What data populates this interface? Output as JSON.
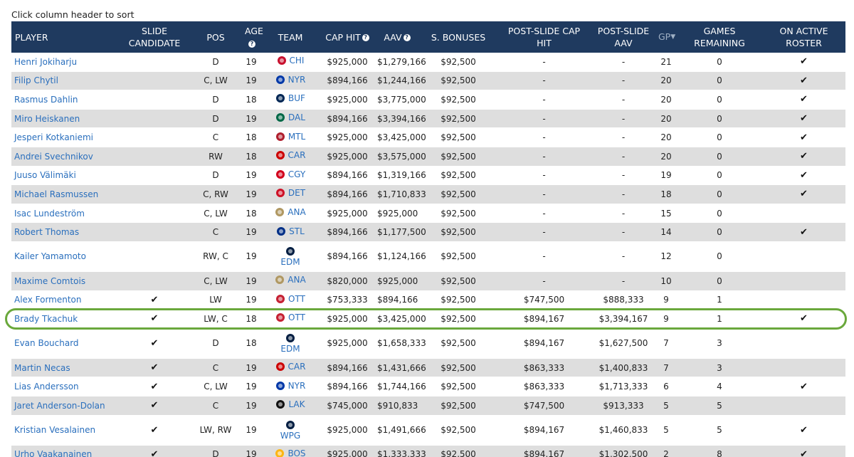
{
  "hint": "Click column header to sort",
  "columns": {
    "player": "PLAYER",
    "slide_candidate": "SLIDE CANDIDATE",
    "pos": "POS",
    "age": "AGE",
    "team": "TEAM",
    "cap_hit": "CAP HIT",
    "aav": "AAV",
    "s_bonuses": "S. BONUSES",
    "post_slide_cap_hit": "POST-SLIDE CAP HIT",
    "post_slide_aav": "POST-SLIDE AAV",
    "gp": "GP",
    "games_remaining": "GAMES REMAINING",
    "on_active_roster": "ON ACTIVE ROSTER"
  },
  "team_colors": {
    "CHI": "#c8102e",
    "NYR": "#0038a8",
    "BUF": "#002654",
    "DAL": "#006847",
    "MTL": "#af1e2d",
    "CAR": "#cc0000",
    "CGY": "#d2001c",
    "DET": "#ce1126",
    "ANA": "#b09862",
    "STL": "#002f87",
    "EDM": "#041e42",
    "OTT": "#c52032",
    "LAK": "#111111",
    "WPG": "#041e42",
    "BOS": "#fcb514"
  },
  "check_mark": "✔",
  "rows": [
    {
      "player": "Henri Jokiharju",
      "slide": "",
      "pos": "D",
      "age": "19",
      "team": "CHI",
      "cap_hit": "$925,000",
      "aav": "$1,279,166",
      "bonus": "$92,500",
      "ps_cap": "-",
      "ps_aav": "-",
      "gp": "21",
      "rem": "0",
      "active": "✔",
      "tall": false
    },
    {
      "player": "Filip Chytil",
      "slide": "",
      "pos": "C, LW",
      "age": "19",
      "team": "NYR",
      "cap_hit": "$894,166",
      "aav": "$1,244,166",
      "bonus": "$92,500",
      "ps_cap": "-",
      "ps_aav": "-",
      "gp": "20",
      "rem": "0",
      "active": "✔",
      "tall": false
    },
    {
      "player": "Rasmus Dahlin",
      "slide": "",
      "pos": "D",
      "age": "18",
      "team": "BUF",
      "cap_hit": "$925,000",
      "aav": "$3,775,000",
      "bonus": "$92,500",
      "ps_cap": "-",
      "ps_aav": "-",
      "gp": "20",
      "rem": "0",
      "active": "✔",
      "tall": false
    },
    {
      "player": "Miro Heiskanen",
      "slide": "",
      "pos": "D",
      "age": "19",
      "team": "DAL",
      "cap_hit": "$894,166",
      "aav": "$3,394,166",
      "bonus": "$92,500",
      "ps_cap": "-",
      "ps_aav": "-",
      "gp": "20",
      "rem": "0",
      "active": "✔",
      "tall": false
    },
    {
      "player": "Jesperi Kotkaniemi",
      "slide": "",
      "pos": "C",
      "age": "18",
      "team": "MTL",
      "cap_hit": "$925,000",
      "aav": "$3,425,000",
      "bonus": "$92,500",
      "ps_cap": "-",
      "ps_aav": "-",
      "gp": "20",
      "rem": "0",
      "active": "✔",
      "tall": false
    },
    {
      "player": "Andrei Svechnikov",
      "slide": "",
      "pos": "RW",
      "age": "18",
      "team": "CAR",
      "cap_hit": "$925,000",
      "aav": "$3,575,000",
      "bonus": "$92,500",
      "ps_cap": "-",
      "ps_aav": "-",
      "gp": "20",
      "rem": "0",
      "active": "✔",
      "tall": false
    },
    {
      "player": "Juuso Välimäki",
      "slide": "",
      "pos": "D",
      "age": "19",
      "team": "CGY",
      "cap_hit": "$894,166",
      "aav": "$1,319,166",
      "bonus": "$92,500",
      "ps_cap": "-",
      "ps_aav": "-",
      "gp": "19",
      "rem": "0",
      "active": "✔",
      "tall": false
    },
    {
      "player": "Michael Rasmussen",
      "slide": "",
      "pos": "C, RW",
      "age": "19",
      "team": "DET",
      "cap_hit": "$894,166",
      "aav": "$1,710,833",
      "bonus": "$92,500",
      "ps_cap": "-",
      "ps_aav": "-",
      "gp": "18",
      "rem": "0",
      "active": "✔",
      "tall": false
    },
    {
      "player": "Isac Lundeström",
      "slide": "",
      "pos": "C, LW",
      "age": "18",
      "team": "ANA",
      "cap_hit": "$925,000",
      "aav": "$925,000",
      "bonus": "$92,500",
      "ps_cap": "-",
      "ps_aav": "-",
      "gp": "15",
      "rem": "0",
      "active": "",
      "tall": false
    },
    {
      "player": "Robert Thomas",
      "slide": "",
      "pos": "C",
      "age": "19",
      "team": "STL",
      "cap_hit": "$894,166",
      "aav": "$1,177,500",
      "bonus": "$92,500",
      "ps_cap": "-",
      "ps_aav": "-",
      "gp": "14",
      "rem": "0",
      "active": "✔",
      "tall": false
    },
    {
      "player": "Kailer Yamamoto",
      "slide": "",
      "pos": "RW, C",
      "age": "19",
      "team": "EDM",
      "cap_hit": "$894,166",
      "aav": "$1,124,166",
      "bonus": "$92,500",
      "ps_cap": "-",
      "ps_aav": "-",
      "gp": "12",
      "rem": "0",
      "active": "",
      "tall": true
    },
    {
      "player": "Maxime Comtois",
      "slide": "",
      "pos": "C, LW",
      "age": "19",
      "team": "ANA",
      "cap_hit": "$820,000",
      "aav": "$925,000",
      "bonus": "$92,500",
      "ps_cap": "-",
      "ps_aav": "-",
      "gp": "10",
      "rem": "0",
      "active": "",
      "tall": false
    },
    {
      "player": "Alex Formenton",
      "slide": "✔",
      "pos": "LW",
      "age": "19",
      "team": "OTT",
      "cap_hit": "$753,333",
      "aav": "$894,166",
      "bonus": "$92,500",
      "ps_cap": "$747,500",
      "ps_aav": "$888,333",
      "gp": "9",
      "rem": "1",
      "active": "",
      "tall": false
    },
    {
      "player": "Brady Tkachuk",
      "slide": "✔",
      "pos": "LW, C",
      "age": "18",
      "team": "OTT",
      "cap_hit": "$925,000",
      "aav": "$3,425,000",
      "bonus": "$92,500",
      "ps_cap": "$894,167",
      "ps_aav": "$3,394,167",
      "gp": "9",
      "rem": "1",
      "active": "✔",
      "tall": false,
      "highlight": true
    },
    {
      "player": "Evan Bouchard",
      "slide": "✔",
      "pos": "D",
      "age": "18",
      "team": "EDM",
      "cap_hit": "$925,000",
      "aav": "$1,658,333",
      "bonus": "$92,500",
      "ps_cap": "$894,167",
      "ps_aav": "$1,627,500",
      "gp": "7",
      "rem": "3",
      "active": "",
      "tall": true
    },
    {
      "player": "Martin Necas",
      "slide": "✔",
      "pos": "C",
      "age": "19",
      "team": "CAR",
      "cap_hit": "$894,166",
      "aav": "$1,431,666",
      "bonus": "$92,500",
      "ps_cap": "$863,333",
      "ps_aav": "$1,400,833",
      "gp": "7",
      "rem": "3",
      "active": "",
      "tall": false
    },
    {
      "player": "Lias Andersson",
      "slide": "✔",
      "pos": "C, LW",
      "age": "19",
      "team": "NYR",
      "cap_hit": "$894,166",
      "aav": "$1,744,166",
      "bonus": "$92,500",
      "ps_cap": "$863,333",
      "ps_aav": "$1,713,333",
      "gp": "6",
      "rem": "4",
      "active": "✔",
      "tall": false
    },
    {
      "player": "Jaret Anderson-Dolan",
      "slide": "✔",
      "pos": "C",
      "age": "19",
      "team": "LAK",
      "cap_hit": "$745,000",
      "aav": "$910,833",
      "bonus": "$92,500",
      "ps_cap": "$747,500",
      "ps_aav": "$913,333",
      "gp": "5",
      "rem": "5",
      "active": "",
      "tall": false
    },
    {
      "player": "Kristian Vesalainen",
      "slide": "✔",
      "pos": "LW, RW",
      "age": "19",
      "team": "WPG",
      "cap_hit": "$925,000",
      "aav": "$1,491,666",
      "bonus": "$92,500",
      "ps_cap": "$894,167",
      "ps_aav": "$1,460,833",
      "gp": "5",
      "rem": "5",
      "active": "✔",
      "tall": true
    },
    {
      "player": "Urho Vaakanainen",
      "slide": "✔",
      "pos": "D",
      "age": "19",
      "team": "BOS",
      "cap_hit": "$925,000",
      "aav": "$1,333,333",
      "bonus": "$92,500",
      "ps_cap": "$894,167",
      "ps_aav": "$1,302,500",
      "gp": "2",
      "rem": "8",
      "active": "✔",
      "tall": false
    }
  ]
}
